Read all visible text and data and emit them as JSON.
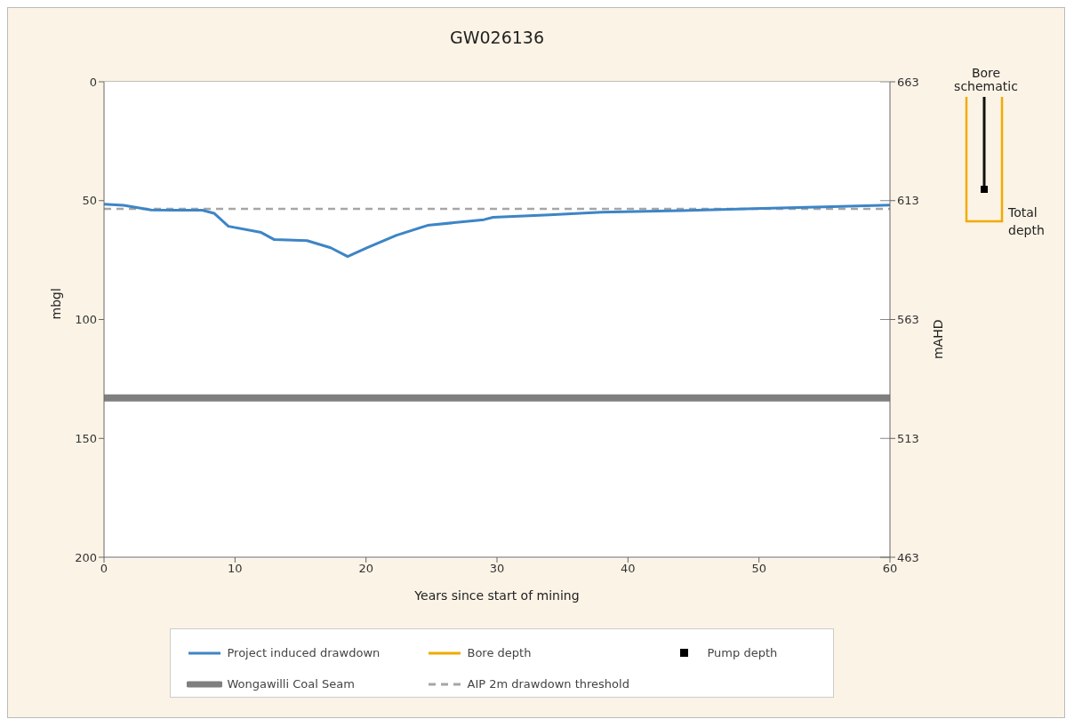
{
  "chart_data": {
    "type": "line",
    "title": "GW026136",
    "xlabel": "Years since start of mining",
    "ylabel": "mbgl",
    "y2label": "mAHD",
    "x": [
      0,
      1.5,
      3.6,
      5.5,
      7.5,
      8.4,
      9.5,
      12,
      13,
      15.5,
      17.3,
      18.6,
      20.1,
      22.3,
      24.7,
      29,
      29.7,
      34,
      38,
      44,
      49.6,
      55,
      60
    ],
    "series": [
      {
        "name": "Project induced drawdown",
        "color": "#3d85c6",
        "values": [
          51.5,
          52,
          53.9,
          54,
          54,
          55.3,
          60.8,
          63.4,
          66.4,
          66.8,
          69.8,
          73.5,
          69.8,
          64.6,
          60.4,
          58,
          57,
          56,
          54.9,
          54.2,
          53.4,
          52.6,
          51.9
        ]
      },
      {
        "name": "Bore depth",
        "color": "#f0ab00",
        "values": [
          null,
          null,
          null,
          null,
          null,
          null,
          null,
          null,
          null,
          null,
          null,
          null,
          null,
          null,
          null,
          null,
          null,
          null,
          null,
          null,
          null,
          null,
          null
        ]
      },
      {
        "name": "Pump depth",
        "color": "#000000",
        "type": "scatter",
        "marker": "square",
        "values": [
          null,
          null,
          null,
          null,
          null,
          null,
          null,
          null,
          null,
          null,
          null,
          null,
          null,
          null,
          null,
          null,
          null,
          null,
          null,
          null,
          null,
          null,
          null
        ]
      }
    ],
    "xlim": [
      0,
      60
    ],
    "xticks": [
      0,
      10,
      20,
      30,
      40,
      50,
      60
    ],
    "ylim": [
      200,
      0
    ],
    "yticks": [
      0,
      50,
      100,
      150,
      200
    ],
    "y2lim": [
      463,
      663
    ],
    "y2ticks": [
      463,
      513,
      563,
      613,
      663
    ],
    "ref_lines": [
      {
        "axis": "y",
        "value": 133,
        "label": "Wongawilli Coal Seam",
        "color": "#7f7f7f",
        "line_style": "solid"
      },
      {
        "axis": "y",
        "value": 53.5,
        "label": "AIP 2m drawdown threshold",
        "color": "#a6a6a6",
        "line_style": "dashed"
      }
    ],
    "annotations": [
      "Bore schematic",
      "Total depth"
    ],
    "grid": "y",
    "legend": "bottom",
    "line_style": "solid",
    "marker": "none"
  }
}
